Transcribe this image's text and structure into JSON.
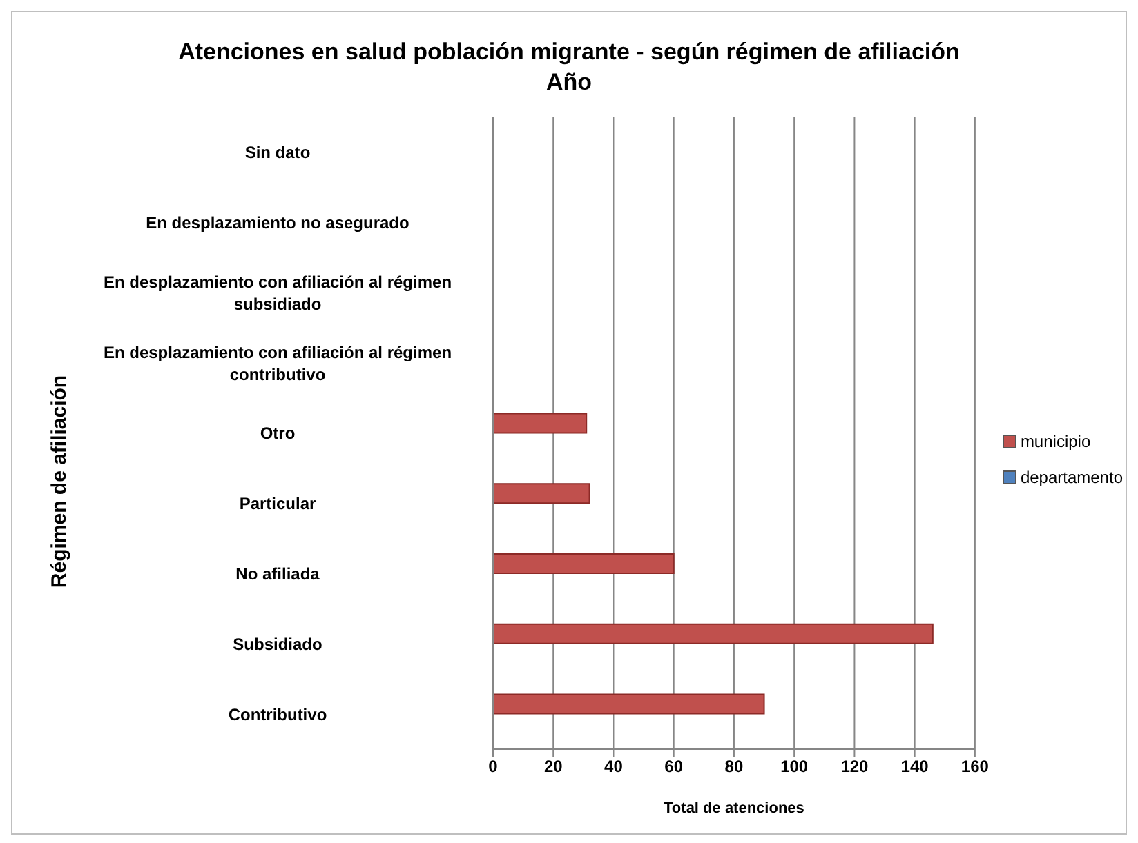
{
  "chart_data": {
    "type": "bar",
    "orientation": "horizontal",
    "title": "Atenciones en salud población migrante - según régimen de afiliación",
    "subtitle": "Año",
    "xlabel": "Total de atenciones",
    "ylabel": "Régimen de afiliación",
    "categories": [
      "Sin dato",
      "En desplazamiento no asegurado",
      "En desplazamiento con afiliación al régimen subsidiado",
      "En desplazamiento con afiliación al régimen contributivo",
      "Otro",
      "Particular",
      "No afiliada",
      "Subsidiado",
      "Contributivo"
    ],
    "series": [
      {
        "name": "municipio",
        "color": "#c0504d",
        "values": [
          null,
          null,
          null,
          null,
          31,
          32,
          60,
          146,
          90
        ]
      },
      {
        "name": "departamento",
        "color": "#4f81bd",
        "values": [
          null,
          null,
          null,
          null,
          null,
          null,
          null,
          null,
          null
        ]
      }
    ],
    "xlim": [
      0,
      160
    ],
    "xticks": [
      0,
      20,
      40,
      60,
      80,
      100,
      120,
      140,
      160
    ],
    "grid": "x",
    "legend": "right"
  }
}
